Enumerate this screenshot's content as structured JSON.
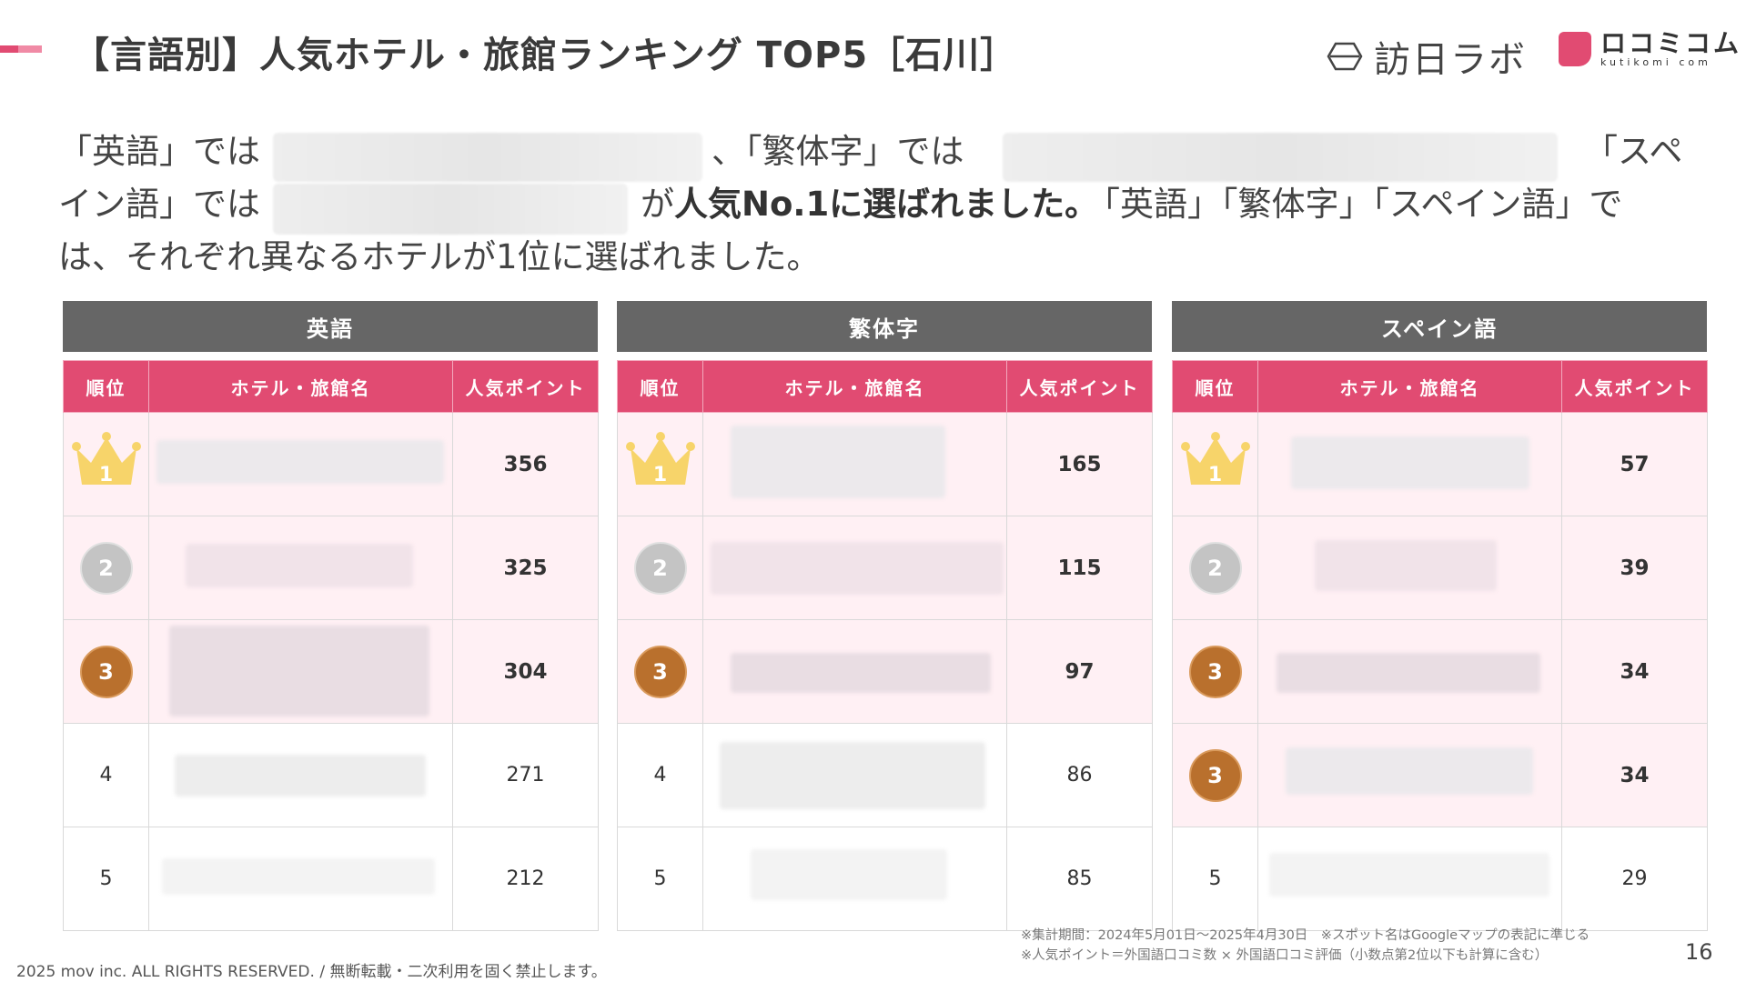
{
  "header": {
    "title": "【言語別】人気ホテル・旅館ランキング TOP5［石川］",
    "logo_houjin_text": "訪日ラボ",
    "logo_kuchikomi_jp": "ロコミコム",
    "logo_kuchikomi_en": "kutikomi com"
  },
  "lead": {
    "l1_a": "「英語」では",
    "l1_b": "、「繁体字」では",
    "l1_c": "「スペ",
    "l2_a": "イン語」では",
    "l2_b_prefix": "が",
    "l2_b_bold": "人気No.1に選ばれました。",
    "l2_c": "「英語」「繁体字」「スペイン語」で",
    "l3": "は、それぞれ異なるホテルが1位に選ばれました。"
  },
  "columns": {
    "rank": "順位",
    "name": "ホテル・旅館名",
    "points": "人気ポイント"
  },
  "panels": [
    {
      "language": "英語",
      "rows": [
        {
          "rank": "1",
          "medal": "crown-gold-icon",
          "points": "356"
        },
        {
          "rank": "2",
          "medal": "silver-medal-icon",
          "points": "325"
        },
        {
          "rank": "3",
          "medal": "bronze-medal-icon",
          "points": "304"
        },
        {
          "rank": "4",
          "medal": "",
          "points": "271"
        },
        {
          "rank": "5",
          "medal": "",
          "points": "212"
        }
      ]
    },
    {
      "language": "繁体字",
      "rows": [
        {
          "rank": "1",
          "medal": "crown-gold-icon",
          "points": "165"
        },
        {
          "rank": "2",
          "medal": "silver-medal-icon",
          "points": "115"
        },
        {
          "rank": "3",
          "medal": "bronze-medal-icon",
          "points": "97"
        },
        {
          "rank": "4",
          "medal": "",
          "points": "86"
        },
        {
          "rank": "5",
          "medal": "",
          "points": "85"
        }
      ]
    },
    {
      "language": "スペイン語",
      "rows": [
        {
          "rank": "1",
          "medal": "crown-gold-icon",
          "points": "57"
        },
        {
          "rank": "2",
          "medal": "silver-medal-icon",
          "points": "39"
        },
        {
          "rank": "3",
          "medal": "bronze-medal-icon",
          "points": "34"
        },
        {
          "rank": "3",
          "medal": "bronze-medal-icon",
          "points": "34"
        },
        {
          "rank": "5",
          "medal": "",
          "points": "29"
        }
      ]
    }
  ],
  "notes": {
    "line1": "※集計期間：2024年5月01日〜2025年4月30日　※スポット名はGoogleマップの表記に準じる",
    "line2": "※人気ポイント＝外国語口コミ数 × 外国語口コミ評価（小数点第2位以下も計算に含む）"
  },
  "footer": {
    "copyright": "2025 mov inc. ALL RIGHTS RESERVED. / 無断転載・二次利用を固く禁止します。",
    "page_number": "16"
  },
  "colors": {
    "accent": "#e14b72",
    "panel_header": "#666666",
    "highlight_row": "#fff0f4",
    "gold": "#f7d46a",
    "silver": "#c4c4c4",
    "bronze": "#b9702d"
  }
}
